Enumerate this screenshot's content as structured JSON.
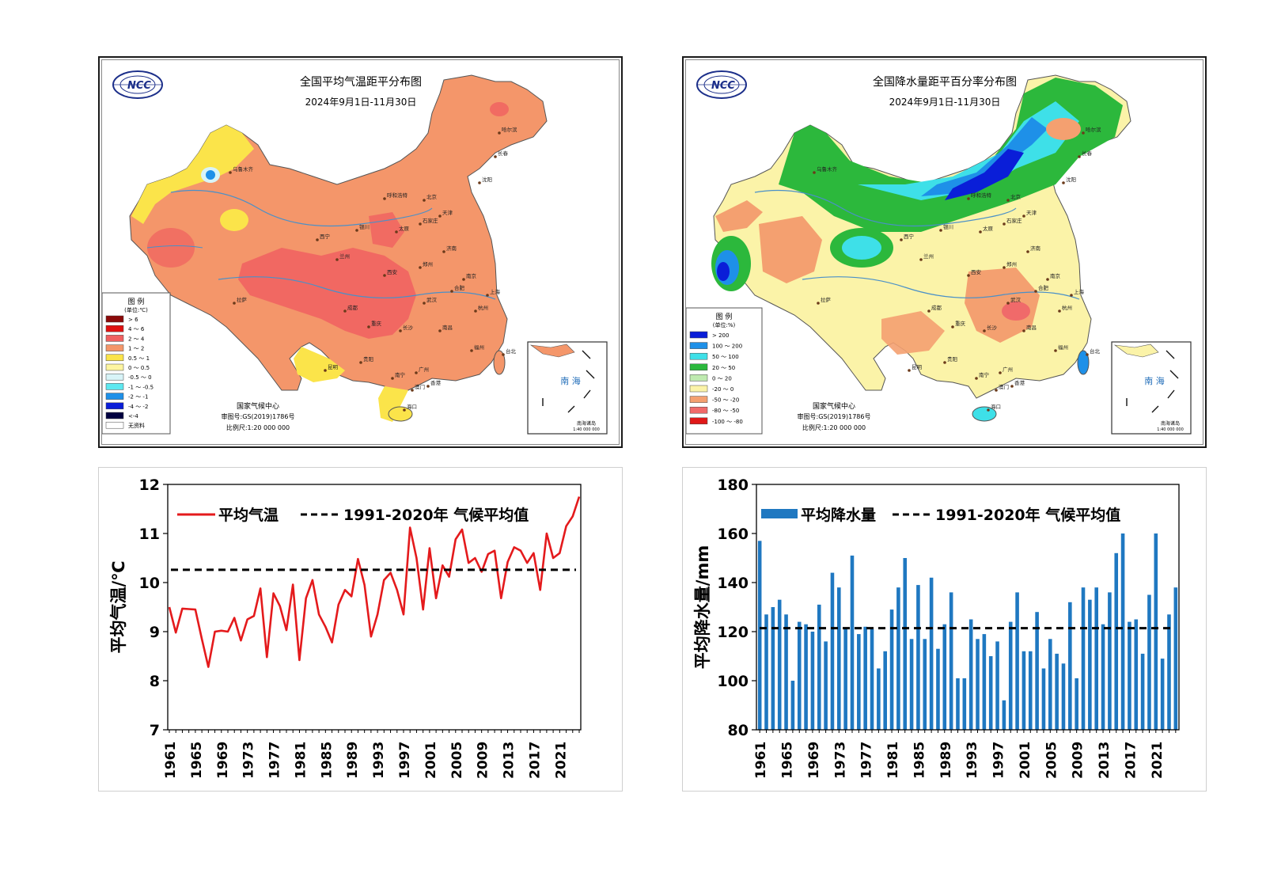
{
  "maps": [
    {
      "title": "全国平均气温距平分布图",
      "date": "2024年9月1日-11月30日",
      "logo_text": "NCC",
      "legend_title": "图 例",
      "legend_unit": "(单位:℃)",
      "legend_items": [
        {
          "label": "> 6",
          "color": "#8b0a0a"
        },
        {
          "label": "4 ～ 6",
          "color": "#e01010"
        },
        {
          "label": "2 ～ 4",
          "color": "#f06060"
        },
        {
          "label": "1 ～ 2",
          "color": "#f4966a"
        },
        {
          "label": "0.5 ～ 1",
          "color": "#fbe44a"
        },
        {
          "label": "0 ～ 0.5",
          "color": "#fdf5a0"
        },
        {
          "label": "-0.5 ～ 0",
          "color": "#d8f4f8"
        },
        {
          "label": "-1 ～ -0.5",
          "color": "#5ee8f0"
        },
        {
          "label": "-2 ～ -1",
          "color": "#1e90e8"
        },
        {
          "label": "-4 ～ -2",
          "color": "#0a1ed8"
        },
        {
          "label": "<-4",
          "color": "#000040"
        },
        {
          "label": "无资料",
          "color": "#ffffff"
        }
      ],
      "issuer": "国家气候中心",
      "approval": "审图号:GS(2019)1786号",
      "scale": "比例尺:1:20 000 000",
      "inset_label": "南 海",
      "inset_caption": "南海诸岛",
      "inset_scale": "1:40 000 000",
      "cities": [
        "乌鲁木齐",
        "哈尔滨",
        "长春",
        "沈阳",
        "呼和浩特",
        "北京",
        "天津",
        "石家庄",
        "太原",
        "银川",
        "西宁",
        "兰州",
        "济南",
        "西安",
        "郑州",
        "合肥",
        "南京",
        "上海",
        "杭州",
        "武汉",
        "成都",
        "重庆",
        "长沙",
        "南昌",
        "贵阳",
        "昆明",
        "福州",
        "台北",
        "南宁",
        "广州",
        "香港",
        "澳门",
        "海口",
        "拉萨"
      ]
    },
    {
      "title": "全国降水量距平百分率分布图",
      "date": "2024年9月1日-11月30日",
      "logo_text": "NCC",
      "legend_title": "图 例",
      "legend_unit": "(单位:%)",
      "legend_items": [
        {
          "label": "> 200",
          "color": "#0a1ed8"
        },
        {
          "label": "100 ～ 200",
          "color": "#1e90e8"
        },
        {
          "label": "50 ～ 100",
          "color": "#3ee0e8"
        },
        {
          "label": "20 ～ 50",
          "color": "#2cb83c"
        },
        {
          "label": "0 ～ 20",
          "color": "#bfeab0"
        },
        {
          "label": "-20 ～ 0",
          "color": "#fbf3a8"
        },
        {
          "label": "-50 ～ -20",
          "color": "#f4a070"
        },
        {
          "label": "-80 ～ -50",
          "color": "#f06a6a"
        },
        {
          "label": "-100 ～ -80",
          "color": "#e01818"
        }
      ],
      "issuer": "国家气候中心",
      "approval": "审图号:GS(2019)1786号",
      "scale": "比例尺:1:20 000 000",
      "inset_label": "南 海",
      "inset_caption": "南海诸岛",
      "inset_scale": "1:40 000 000",
      "cities": [
        "乌鲁木齐",
        "哈尔滨",
        "长春",
        "沈阳",
        "呼和浩特",
        "北京",
        "天津",
        "石家庄",
        "太原",
        "银川",
        "西宁",
        "兰州",
        "济南",
        "西安",
        "郑州",
        "合肥",
        "南京",
        "上海",
        "杭州",
        "武汉",
        "成都",
        "重庆",
        "长沙",
        "南昌",
        "贵阳",
        "昆明",
        "福州",
        "台北",
        "南宁",
        "广州",
        "香港",
        "澳门",
        "海口",
        "拉萨"
      ]
    }
  ],
  "chart_data": [
    {
      "type": "line",
      "title": "",
      "ylabel": "平均气温/℃",
      "xlabel": "",
      "ylim": [
        7,
        12
      ],
      "yticks": [
        7,
        8,
        9,
        10,
        11,
        12
      ],
      "xticks": [
        1961,
        1965,
        1969,
        1973,
        1977,
        1981,
        1985,
        1989,
        1993,
        1997,
        2001,
        2005,
        2009,
        2013,
        2017,
        2021
      ],
      "legend_position": "top-left",
      "x": [
        1961,
        1962,
        1963,
        1964,
        1965,
        1966,
        1967,
        1968,
        1969,
        1970,
        1971,
        1972,
        1973,
        1974,
        1975,
        1976,
        1977,
        1978,
        1979,
        1980,
        1981,
        1982,
        1983,
        1984,
        1985,
        1986,
        1987,
        1988,
        1989,
        1990,
        1991,
        1992,
        1993,
        1994,
        1995,
        1996,
        1997,
        1998,
        1999,
        2000,
        2001,
        2002,
        2003,
        2004,
        2005,
        2006,
        2007,
        2008,
        2009,
        2010,
        2011,
        2012,
        2013,
        2014,
        2015,
        2016,
        2017,
        2018,
        2019,
        2020,
        2021,
        2022,
        2023,
        2024
      ],
      "series": [
        {
          "name": "平均气温",
          "color": "#e41a1c",
          "values": [
            9.5,
            8.98,
            9.47,
            9.46,
            9.45,
            8.85,
            8.28,
            9.0,
            9.02,
            9.0,
            9.28,
            8.82,
            9.25,
            9.32,
            9.88,
            8.48,
            9.78,
            9.52,
            9.03,
            9.96,
            8.42,
            9.68,
            10.05,
            9.35,
            9.1,
            8.78,
            9.55,
            9.85,
            9.72,
            10.48,
            9.95,
            8.9,
            9.35,
            10.05,
            10.2,
            9.85,
            9.35,
            11.12,
            10.5,
            9.45,
            10.7,
            9.68,
            10.35,
            10.12,
            10.88,
            11.08,
            10.4,
            10.5,
            10.22,
            10.58,
            10.65,
            9.68,
            10.42,
            10.72,
            10.65,
            10.4,
            10.6,
            9.85,
            11.0,
            10.5,
            10.6,
            11.15,
            11.35,
            11.75
          ]
        }
      ],
      "reference": {
        "name": "1991-2020年 气候平均值",
        "value": 10.26,
        "color": "#000000"
      }
    },
    {
      "type": "bar",
      "title": "",
      "ylabel": "平均降水量/mm",
      "xlabel": "",
      "ylim": [
        80,
        180
      ],
      "yticks": [
        80,
        100,
        120,
        140,
        160,
        180
      ],
      "xticks": [
        1961,
        1965,
        1969,
        1973,
        1977,
        1981,
        1985,
        1989,
        1993,
        1997,
        2001,
        2005,
        2009,
        2013,
        2017,
        2021
      ],
      "legend_position": "top-left",
      "x": [
        1961,
        1962,
        1963,
        1964,
        1965,
        1966,
        1967,
        1968,
        1969,
        1970,
        1971,
        1972,
        1973,
        1974,
        1975,
        1976,
        1977,
        1978,
        1979,
        1980,
        1981,
        1982,
        1983,
        1984,
        1985,
        1986,
        1987,
        1988,
        1989,
        1990,
        1991,
        1992,
        1993,
        1994,
        1995,
        1996,
        1997,
        1998,
        1999,
        2000,
        2001,
        2002,
        2003,
        2004,
        2005,
        2006,
        2007,
        2008,
        2009,
        2010,
        2011,
        2012,
        2013,
        2014,
        2015,
        2016,
        2017,
        2018,
        2019,
        2020,
        2021,
        2022,
        2023,
        2024
      ],
      "series": [
        {
          "name": "平均降水量",
          "color": "#1f78c1",
          "values": [
            157,
            127,
            130,
            133,
            127,
            100,
            124,
            123,
            120,
            131,
            116,
            144,
            138,
            121,
            151,
            119,
            122,
            121,
            105,
            112,
            129,
            138,
            150,
            117,
            139,
            117,
            142,
            113,
            123,
            136,
            101,
            101,
            125,
            117,
            119,
            110,
            116,
            92,
            124,
            136,
            112,
            112,
            128,
            105,
            117,
            111,
            107,
            132,
            101,
            138,
            133,
            138,
            123,
            136,
            152,
            160,
            124,
            125,
            111,
            135,
            160,
            109,
            127,
            138
          ]
        }
      ],
      "reference": {
        "name": "1991-2020年 气候平均值",
        "value": 121.4,
        "color": "#000000"
      }
    }
  ]
}
